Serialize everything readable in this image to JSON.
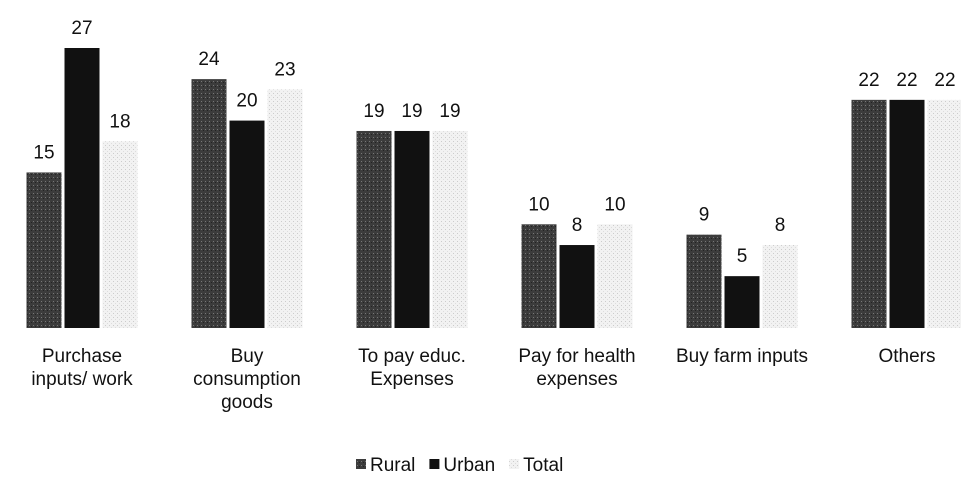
{
  "chart_data": {
    "type": "bar",
    "categories": [
      "Purchase inputs/ work",
      "Buy consumption goods",
      "To pay educ. Expenses",
      "Pay for health expenses",
      "Buy farm inputs",
      "Others"
    ],
    "series": [
      {
        "name": "Rural",
        "color": "#3c3c3c",
        "values": [
          15,
          24,
          19,
          10,
          9,
          22
        ]
      },
      {
        "name": "Urban",
        "color": "#111111",
        "values": [
          27,
          20,
          19,
          8,
          5,
          22
        ]
      },
      {
        "name": "Total",
        "color": "#e8e8e8",
        "values": [
          18,
          23,
          19,
          10,
          8,
          22
        ]
      }
    ],
    "legend": "bottom"
  }
}
